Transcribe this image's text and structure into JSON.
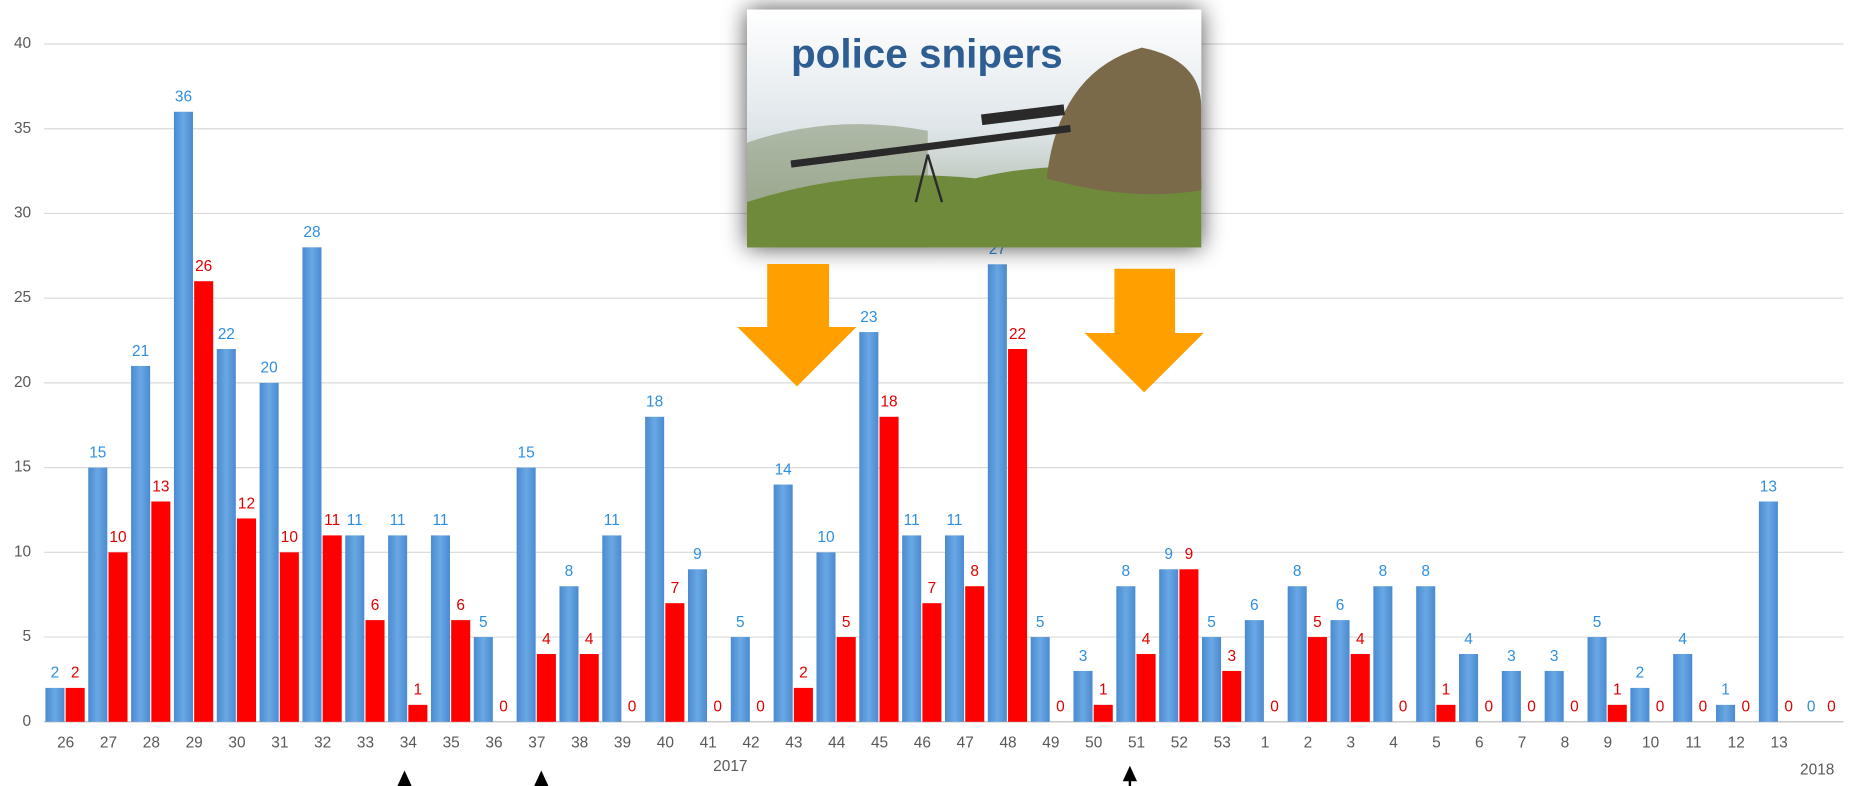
{
  "chart_data": {
    "type": "bar",
    "categories": [
      "26",
      "27",
      "28",
      "29",
      "30",
      "31",
      "32",
      "33",
      "34",
      "35",
      "36",
      "37",
      "38",
      "39",
      "40",
      "41",
      "42",
      "43",
      "44",
      "45",
      "46",
      "47",
      "48",
      "49",
      "50",
      "51",
      "52",
      "53",
      "1",
      "2",
      "3",
      "4",
      "5",
      "6",
      "7",
      "8",
      "9",
      "10",
      "11",
      "12",
      "13",
      null
    ],
    "series": [
      {
        "color": "#5b9bd5",
        "label_color": "#2e8fe0",
        "values": [
          2,
          15,
          21,
          36,
          22,
          20,
          28,
          11,
          11,
          11,
          5,
          15,
          8,
          11,
          18,
          9,
          5,
          14,
          10,
          23,
          11,
          11,
          27,
          5,
          3,
          8,
          9,
          5,
          6,
          8,
          6,
          8,
          8,
          4,
          3,
          3,
          5,
          2,
          4,
          1,
          13,
          0
        ]
      },
      {
        "color": "#ff0000",
        "label_color": "#e00000",
        "values": [
          2,
          10,
          13,
          26,
          12,
          10,
          11,
          6,
          1,
          6,
          0,
          4,
          4,
          0,
          7,
          0,
          0,
          2,
          5,
          18,
          7,
          8,
          22,
          0,
          1,
          4,
          9,
          3,
          0,
          5,
          4,
          0,
          1,
          0,
          0,
          0,
          1,
          0,
          0,
          0,
          0,
          0
        ]
      }
    ],
    "ylim": [
      0,
      40
    ],
    "yticks": [
      0,
      5,
      10,
      15,
      20,
      25,
      30,
      35,
      40
    ],
    "grid": true,
    "annotations": [
      "2017",
      "2018",
      "police snipers"
    ]
  }
}
